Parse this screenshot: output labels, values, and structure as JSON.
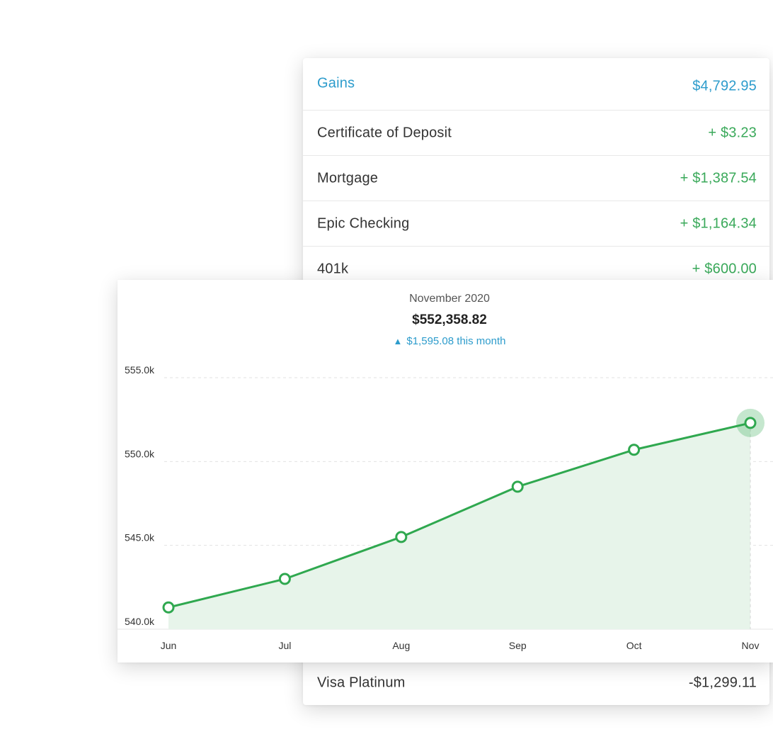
{
  "accounts": {
    "header": {
      "label": "Gains",
      "value": "$4,792.95"
    },
    "rows": [
      {
        "label": "Certificate of Deposit",
        "value": "+ $3.23"
      },
      {
        "label": "Mortgage",
        "value": "+ $1,387.54"
      },
      {
        "label": "Epic Checking",
        "value": "+ $1,164.34"
      },
      {
        "label": "401k",
        "value": "+ $600.00"
      }
    ],
    "bottom": {
      "label": "Visa Platinum",
      "value": "-$1,299.11"
    }
  },
  "summary": {
    "month": "November 2020",
    "total": "$552,358.82",
    "change_arrow": "▲",
    "change": "$1,595.08 this month"
  },
  "colors": {
    "accent_blue": "#2d9ccc",
    "gain_green": "#3aa95a",
    "line_green": "#2fa84f",
    "fill_green": "#e7f4ea"
  },
  "chart_data": {
    "type": "area",
    "categories": [
      "Jun",
      "Jul",
      "Aug",
      "Sep",
      "Oct",
      "Nov"
    ],
    "values": [
      541.3,
      543.0,
      545.5,
      548.5,
      550.7,
      552.3
    ],
    "ylim": [
      540.0,
      555.0
    ],
    "yticks": [
      540.0,
      545.0,
      550.0,
      555.0
    ],
    "ytick_labels": [
      "540.0k",
      "545.0k",
      "550.0k",
      "555.0k"
    ],
    "grid": true,
    "highlight_index": 5
  }
}
